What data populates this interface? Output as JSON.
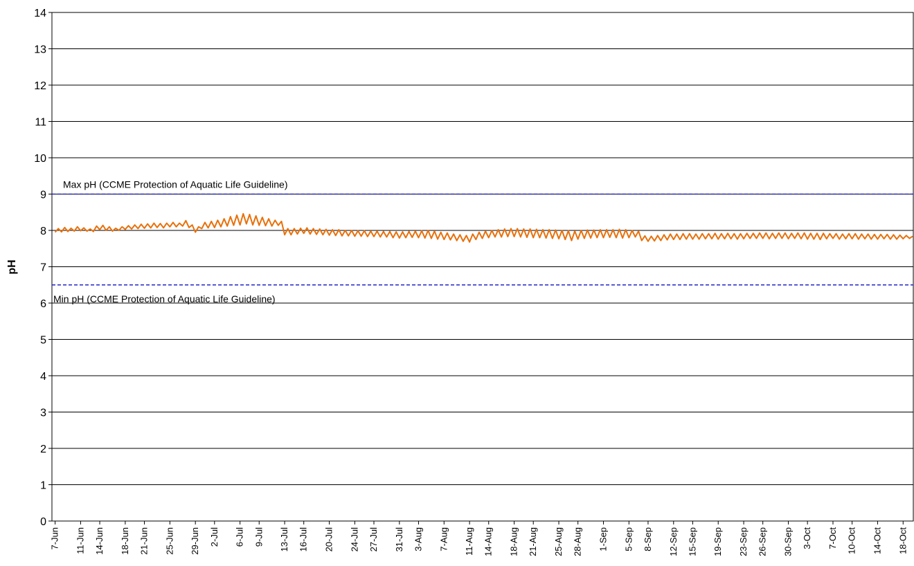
{
  "chart_data": {
    "type": "line",
    "y_label": "pH",
    "color": "#e8700a",
    "grid": true,
    "xlim": [
      -0.5,
      134.6
    ],
    "ylim": [
      0,
      14
    ],
    "yticks": [
      0,
      1,
      2,
      3,
      4,
      5,
      6,
      7,
      8,
      9,
      10,
      11,
      12,
      13,
      14
    ],
    "xticks": [
      {
        "value": 0,
        "label": "7-Jun"
      },
      {
        "value": 4,
        "label": "11-Jun"
      },
      {
        "value": 7,
        "label": "14-Jun"
      },
      {
        "value": 11,
        "label": "18-Jun"
      },
      {
        "value": 14,
        "label": "21-Jun"
      },
      {
        "value": 18,
        "label": "25-Jun"
      },
      {
        "value": 22,
        "label": "29-Jun"
      },
      {
        "value": 25,
        "label": "2-Jul"
      },
      {
        "value": 29,
        "label": "6-Jul"
      },
      {
        "value": 32,
        "label": "9-Jul"
      },
      {
        "value": 36,
        "label": "13-Jul"
      },
      {
        "value": 39,
        "label": "16-Jul"
      },
      {
        "value": 43,
        "label": "20-Jul"
      },
      {
        "value": 47,
        "label": "24-Jul"
      },
      {
        "value": 50,
        "label": "27-Jul"
      },
      {
        "value": 54,
        "label": "31-Jul"
      },
      {
        "value": 57,
        "label": "3-Aug"
      },
      {
        "value": 61,
        "label": "7-Aug"
      },
      {
        "value": 65,
        "label": "11-Aug"
      },
      {
        "value": 68,
        "label": "14-Aug"
      },
      {
        "value": 72,
        "label": "18-Aug"
      },
      {
        "value": 75,
        "label": "21-Aug"
      },
      {
        "value": 79,
        "label": "25-Aug"
      },
      {
        "value": 82,
        "label": "28-Aug"
      },
      {
        "value": 86,
        "label": "1-Sep"
      },
      {
        "value": 90,
        "label": "5-Sep"
      },
      {
        "value": 93,
        "label": "8-Sep"
      },
      {
        "value": 97,
        "label": "12-Sep"
      },
      {
        "value": 100,
        "label": "15-Sep"
      },
      {
        "value": 104,
        "label": "19-Sep"
      },
      {
        "value": 108,
        "label": "23-Sep"
      },
      {
        "value": 111,
        "label": "26-Sep"
      },
      {
        "value": 115,
        "label": "30-Sep"
      },
      {
        "value": 118,
        "label": "3-Oct"
      },
      {
        "value": 122,
        "label": "7-Oct"
      },
      {
        "value": 125,
        "label": "10-Oct"
      },
      {
        "value": 129,
        "label": "14-Oct"
      },
      {
        "value": 133,
        "label": "18-Oct"
      }
    ],
    "reference_lines": [
      {
        "value": 9,
        "label": "Max pH (CCME  Protection of Aquatic Life Guideline)",
        "color": "#2323c8"
      },
      {
        "value": 6.5,
        "label": "Min pH (CCME  Protection of Aquatic Life Guideline)",
        "color": "#2323c8"
      }
    ],
    "x": [
      0,
      0.5,
      1,
      1.5,
      2,
      2.5,
      3,
      3.5,
      4,
      4.5,
      5,
      5.5,
      6,
      6.5,
      7,
      7.5,
      8,
      8.5,
      9,
      9.5,
      10,
      10.5,
      11,
      11.5,
      12,
      12.5,
      13,
      13.5,
      14,
      14.5,
      15,
      15.5,
      16,
      16.5,
      17,
      17.5,
      18,
      18.5,
      19,
      19.5,
      20,
      20.5,
      21,
      21.5,
      22,
      22.5,
      23,
      23.5,
      24,
      24.5,
      25,
      25.5,
      26,
      26.5,
      27,
      27.5,
      28,
      28.5,
      29,
      29.5,
      30,
      30.5,
      31,
      31.5,
      32,
      32.5,
      33,
      33.5,
      34,
      34.5,
      35,
      35.5,
      36,
      36.5,
      37,
      37.5,
      38,
      38.5,
      39,
      39.5,
      40,
      40.5,
      41,
      41.5,
      42,
      42.5,
      43,
      43.5,
      44,
      44.5,
      45,
      45.5,
      46,
      46.5,
      47,
      47.5,
      48,
      48.5,
      49,
      49.5,
      50,
      50.5,
      51,
      51.5,
      52,
      52.5,
      53,
      53.5,
      54,
      54.5,
      55,
      55.5,
      56,
      56.5,
      57,
      57.5,
      58,
      58.5,
      59,
      59.5,
      60,
      60.5,
      61,
      61.5,
      62,
      62.5,
      63,
      63.5,
      64,
      64.5,
      65,
      65.5,
      66,
      66.5,
      67,
      67.5,
      68,
      68.5,
      69,
      69.5,
      70,
      70.5,
      71,
      71.5,
      72,
      72.5,
      73,
      73.5,
      74,
      74.5,
      75,
      75.5,
      76,
      76.5,
      77,
      77.5,
      78,
      78.5,
      79,
      79.5,
      80,
      80.5,
      81,
      81.5,
      82,
      82.5,
      83,
      83.5,
      84,
      84.5,
      85,
      85.5,
      86,
      86.5,
      87,
      87.5,
      88,
      88.5,
      89,
      89.5,
      90,
      90.5,
      91,
      91.5,
      92,
      92.5,
      93,
      93.5,
      94,
      94.5,
      95,
      95.5,
      96,
      96.5,
      97,
      97.5,
      98,
      98.5,
      99,
      99.5,
      100,
      100.5,
      101,
      101.5,
      102,
      102.5,
      103,
      103.5,
      104,
      104.5,
      105,
      105.5,
      106,
      106.5,
      107,
      107.5,
      108,
      108.5,
      109,
      109.5,
      110,
      110.5,
      111,
      111.5,
      112,
      112.5,
      113,
      113.5,
      114,
      114.5,
      115,
      115.5,
      116,
      116.5,
      117,
      117.5,
      118,
      118.5,
      119,
      119.5,
      120,
      120.5,
      121,
      121.5,
      122,
      122.5,
      123,
      123.5,
      124,
      124.5,
      125,
      125.5,
      126,
      126.5,
      127,
      127.5,
      128,
      128.5,
      129,
      129.5,
      130,
      130.5,
      131,
      131.5,
      132,
      132.5,
      133,
      133.5,
      134,
      134.5
    ],
    "values": [
      7.95,
      8.05,
      7.96,
      8.08,
      7.97,
      8.06,
      7.98,
      8.1,
      7.99,
      8.07,
      7.98,
      8.04,
      7.97,
      8.12,
      8.02,
      8.14,
      8.0,
      8.1,
      7.98,
      8.06,
      8.0,
      8.1,
      8.03,
      8.13,
      8.04,
      8.15,
      8.05,
      8.17,
      8.06,
      8.18,
      8.07,
      8.2,
      8.08,
      8.19,
      8.07,
      8.2,
      8.1,
      8.22,
      8.1,
      8.2,
      8.12,
      8.27,
      8.08,
      8.15,
      7.95,
      8.1,
      8.05,
      8.22,
      8.07,
      8.25,
      8.08,
      8.28,
      8.1,
      8.32,
      8.12,
      8.38,
      8.14,
      8.42,
      8.15,
      8.46,
      8.18,
      8.44,
      8.15,
      8.4,
      8.14,
      8.36,
      8.13,
      8.32,
      8.12,
      8.28,
      8.14,
      8.25,
      7.88,
      8.05,
      7.88,
      8.05,
      7.9,
      8.06,
      7.92,
      8.07,
      7.9,
      8.05,
      7.89,
      8.04,
      7.88,
      8.03,
      7.87,
      8.02,
      7.86,
      8.02,
      7.85,
      8.0,
      7.85,
      8.0,
      7.84,
      7.99,
      7.84,
      7.99,
      7.83,
      7.98,
      7.83,
      7.98,
      7.82,
      7.97,
      7.82,
      7.97,
      7.8,
      7.96,
      7.79,
      7.96,
      7.8,
      7.97,
      7.81,
      7.98,
      7.8,
      7.99,
      7.79,
      8.0,
      7.78,
      7.98,
      7.76,
      7.95,
      7.75,
      7.93,
      7.74,
      7.9,
      7.72,
      7.88,
      7.7,
      7.86,
      7.68,
      7.9,
      7.75,
      7.95,
      7.78,
      7.98,
      7.8,
      8.0,
      7.82,
      8.02,
      7.82,
      8.04,
      7.83,
      8.05,
      7.83,
      8.05,
      7.82,
      8.04,
      7.81,
      8.04,
      7.8,
      8.03,
      7.8,
      8.02,
      7.79,
      8.02,
      7.78,
      8.01,
      7.77,
      8.0,
      7.75,
      7.99,
      7.72,
      7.98,
      7.76,
      8.0,
      7.78,
      8.01,
      7.79,
      8.01,
      7.8,
      8.02,
      7.8,
      8.02,
      7.81,
      8.02,
      7.8,
      8.03,
      7.79,
      8.02,
      7.8,
      8.0,
      7.82,
      7.98,
      7.72,
      7.85,
      7.7,
      7.84,
      7.71,
      7.86,
      7.72,
      7.88,
      7.74,
      7.9,
      7.75,
      7.9,
      7.75,
      7.91,
      7.76,
      7.91,
      7.76,
      7.9,
      7.76,
      7.91,
      7.77,
      7.91,
      7.77,
      7.92,
      7.76,
      7.91,
      7.77,
      7.92,
      7.77,
      7.91,
      7.76,
      7.91,
      7.77,
      7.92,
      7.78,
      7.92,
      7.78,
      7.93,
      7.78,
      7.93,
      7.77,
      7.92,
      7.78,
      7.93,
      7.78,
      7.93,
      7.77,
      7.92,
      7.78,
      7.93,
      7.77,
      7.93,
      7.76,
      7.92,
      7.76,
      7.92,
      7.75,
      7.92,
      7.77,
      7.91,
      7.78,
      7.91,
      7.76,
      7.9,
      7.77,
      7.91,
      7.77,
      7.91,
      7.76,
      7.9,
      7.77,
      7.9,
      7.76,
      7.89,
      7.76,
      7.89,
      7.77,
      7.89,
      7.76,
      7.88,
      7.76,
      7.87,
      7.77,
      7.86,
      7.78,
      7.84
    ]
  }
}
